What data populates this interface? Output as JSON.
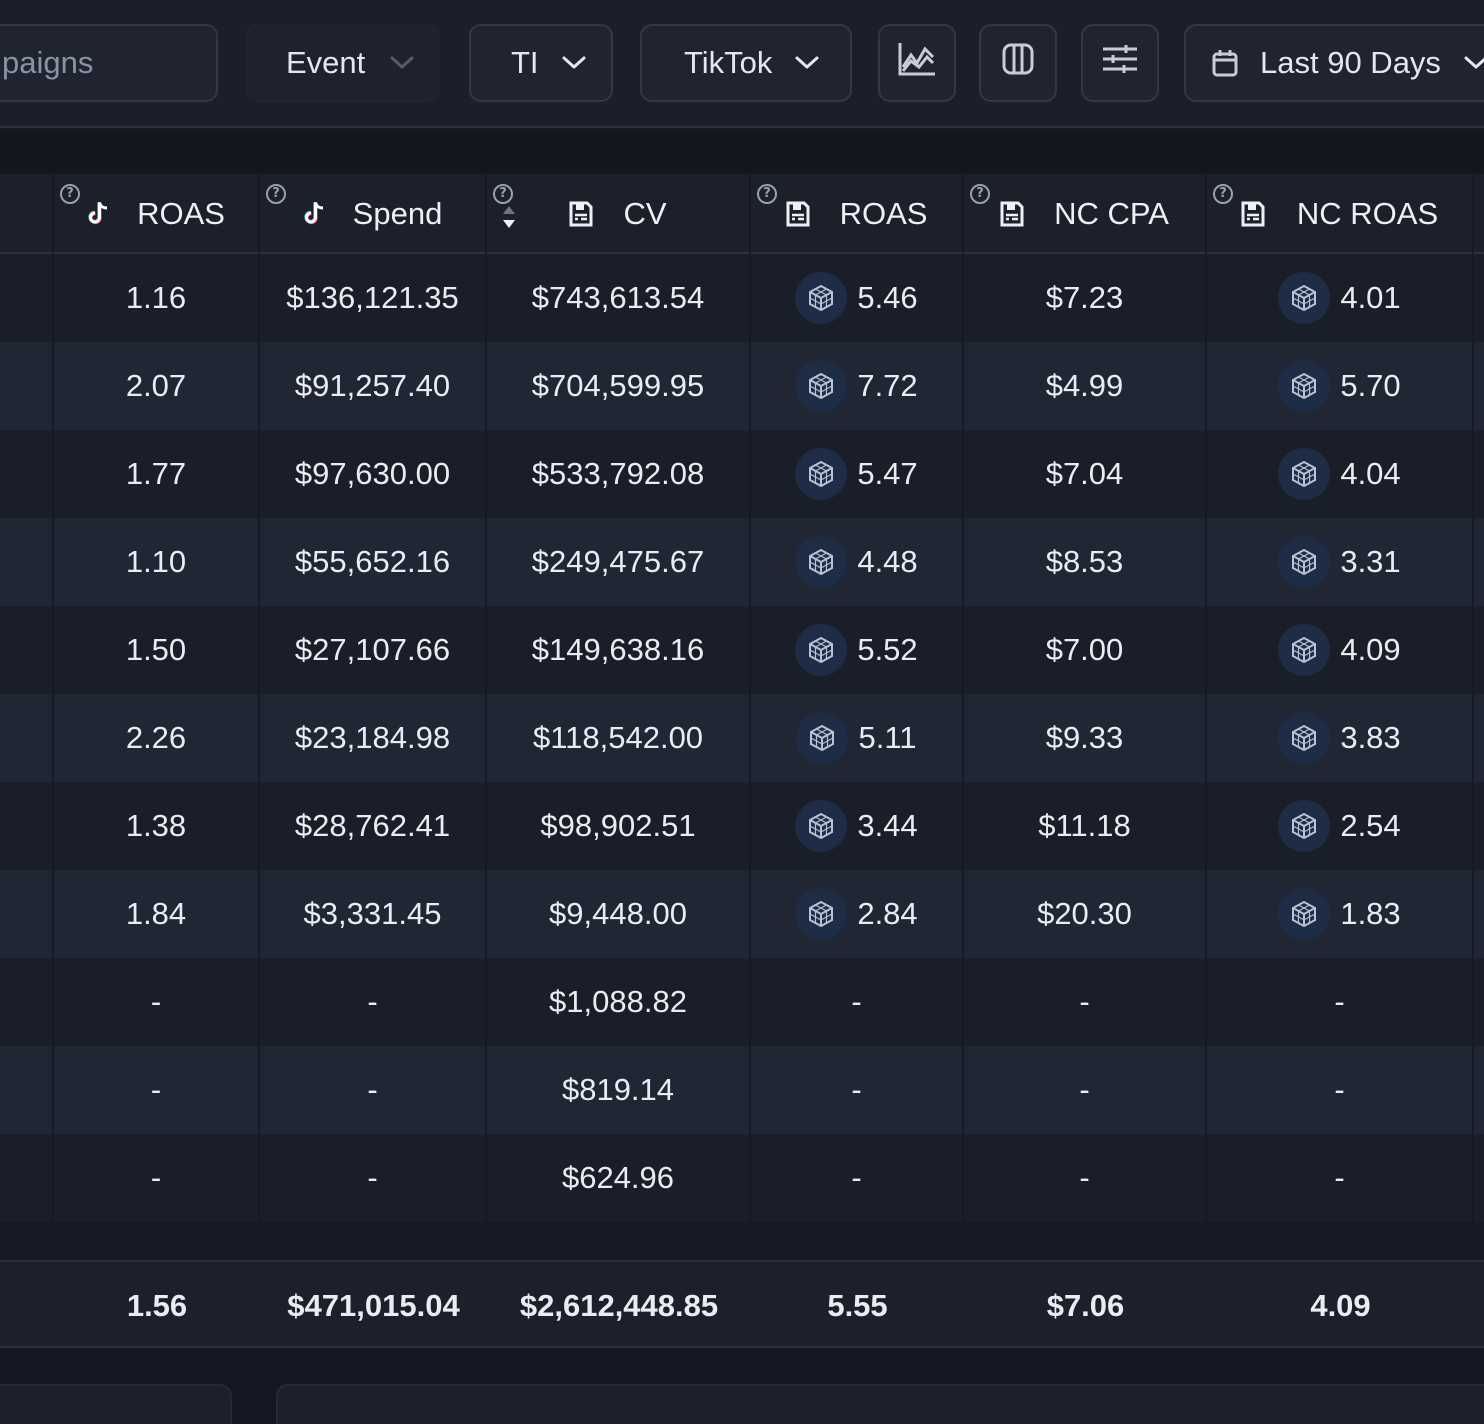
{
  "toolbar": {
    "search_value": "paigns",
    "event_label": "Event",
    "ti_label": "TI",
    "platform_label": "TikTok",
    "date_label": "Last 90 Days"
  },
  "columns": [
    {
      "label": "ROAS",
      "icon": "tiktok-icon",
      "help": "?"
    },
    {
      "label": "Spend",
      "icon": "tiktok-icon",
      "help": "?"
    },
    {
      "label": "CV",
      "icon": "floppy-icon",
      "help": "?"
    },
    {
      "label": "ROAS",
      "icon": "floppy-icon",
      "help": "?"
    },
    {
      "label": "NC CPA",
      "icon": "floppy-icon",
      "help": "?"
    },
    {
      "label": "NC ROAS",
      "icon": "floppy-icon",
      "help": "?"
    }
  ],
  "rows": [
    [
      "1.16",
      "$136,121.35",
      "$743,613.54",
      "5.46",
      "$7.23",
      "4.01"
    ],
    [
      "2.07",
      "$91,257.40",
      "$704,599.95",
      "7.72",
      "$4.99",
      "5.70"
    ],
    [
      "1.77",
      "$97,630.00",
      "$533,792.08",
      "5.47",
      "$7.04",
      "4.04"
    ],
    [
      "1.10",
      "$55,652.16",
      "$249,475.67",
      "4.48",
      "$8.53",
      "3.31"
    ],
    [
      "1.50",
      "$27,107.66",
      "$149,638.16",
      "5.52",
      "$7.00",
      "4.09"
    ],
    [
      "2.26",
      "$23,184.98",
      "$118,542.00",
      "5.11",
      "$9.33",
      "3.83"
    ],
    [
      "1.38",
      "$28,762.41",
      "$98,902.51",
      "3.44",
      "$11.18",
      "2.54"
    ],
    [
      "1.84",
      "$3,331.45",
      "$9,448.00",
      "2.84",
      "$20.30",
      "1.83"
    ],
    [
      "-",
      "-",
      "$1,088.82",
      "-",
      "-",
      "-"
    ],
    [
      "-",
      "-",
      "$819.14",
      "-",
      "-",
      "-"
    ],
    [
      "-",
      "-",
      "$624.96",
      "-",
      "-",
      "-"
    ]
  ],
  "totals": [
    "1.56",
    "$471,015.04",
    "$2,612,448.85",
    "5.55",
    "$7.06",
    "4.09"
  ],
  "colors": {
    "accent_badge": "#1e2c46",
    "background": "#161a24"
  }
}
